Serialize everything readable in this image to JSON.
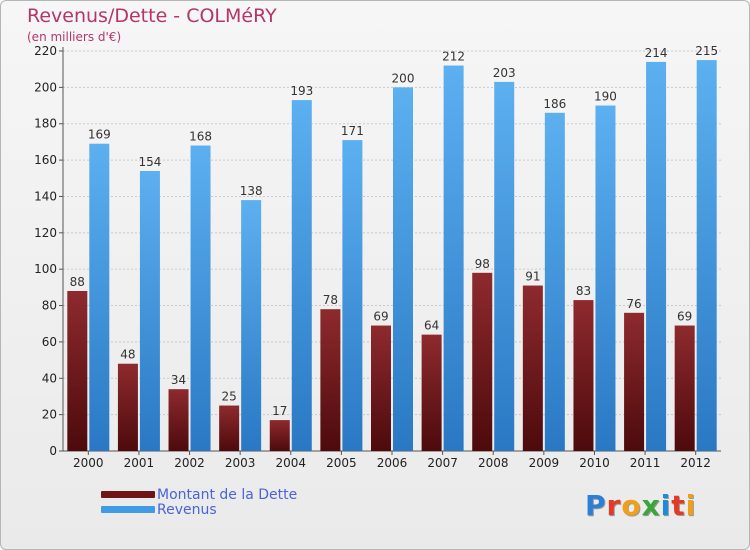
{
  "chart_data": {
    "type": "bar",
    "title": "Revenus/Dette - COLMéRY",
    "subtitle": "(en milliers d'€)",
    "xlabel": "",
    "ylabel": "",
    "categories": [
      "2000",
      "2001",
      "2002",
      "2003",
      "2004",
      "2005",
      "2006",
      "2007",
      "2008",
      "2009",
      "2010",
      "2011",
      "2012"
    ],
    "series": [
      {
        "name": "Montant de la Dette",
        "color": "#7a1a1d",
        "values": [
          88,
          48,
          34,
          25,
          17,
          78,
          69,
          64,
          98,
          91,
          83,
          76,
          69
        ]
      },
      {
        "name": "Revenus",
        "color": "#4ea3e6",
        "values": [
          169,
          154,
          168,
          138,
          193,
          171,
          200,
          212,
          203,
          186,
          190,
          214,
          215
        ]
      }
    ],
    "ylim": [
      0,
      220
    ],
    "yticks": [
      0,
      20,
      40,
      60,
      80,
      100,
      120,
      140,
      160,
      180,
      200,
      220
    ],
    "grid": true,
    "legend_position": "bottom-left"
  },
  "logo": {
    "letters": [
      "P",
      "r",
      "o",
      "x",
      "i",
      "t",
      "i"
    ],
    "colors": [
      "#2d7fd6",
      "#e23a25",
      "#f0a018",
      "#3aa63a",
      "#1e8ad8",
      "#e23a25",
      "#f0a018"
    ]
  }
}
